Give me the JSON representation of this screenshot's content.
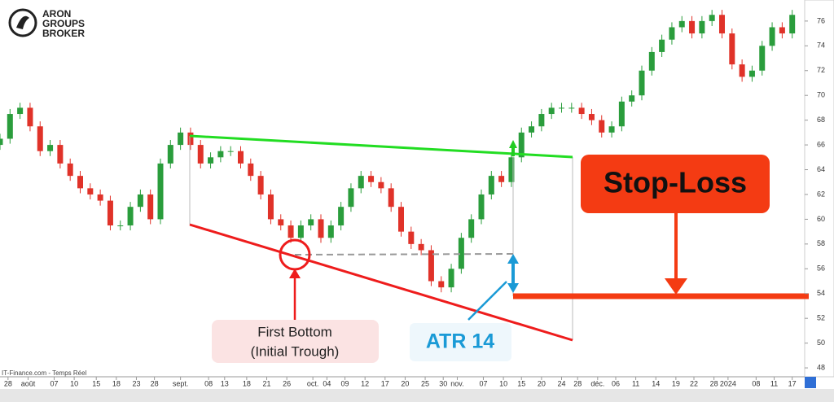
{
  "chart_data": {
    "type": "candlestick",
    "xlim": [
      0,
      200
    ],
    "ylim": [
      47.15,
      77.7
    ],
    "yticks": [
      48,
      50,
      52,
      54,
      56,
      58,
      60,
      62,
      64,
      66,
      68,
      70,
      72,
      74,
      76
    ],
    "xticks": [
      {
        "value": 2,
        "label": "28"
      },
      {
        "value": 7,
        "label": "août"
      },
      {
        "value": 13.5,
        "label": "07"
      },
      {
        "value": 18.5,
        "label": "10"
      },
      {
        "value": 24,
        "label": "15"
      },
      {
        "value": 29,
        "label": "18"
      },
      {
        "value": 34,
        "label": "23"
      },
      {
        "value": 38.5,
        "label": "28"
      },
      {
        "value": 45,
        "label": "sept."
      },
      {
        "value": 52,
        "label": "08"
      },
      {
        "value": 56,
        "label": "13"
      },
      {
        "value": 61.5,
        "label": "18"
      },
      {
        "value": 66.5,
        "label": "21"
      },
      {
        "value": 71.5,
        "label": "26"
      },
      {
        "value": 78,
        "label": "oct."
      },
      {
        "value": 81.5,
        "label": "04"
      },
      {
        "value": 86,
        "label": "09"
      },
      {
        "value": 91,
        "label": "12"
      },
      {
        "value": 96,
        "label": "17"
      },
      {
        "value": 101,
        "label": "20"
      },
      {
        "value": 106,
        "label": "25"
      },
      {
        "value": 110.5,
        "label": "30"
      },
      {
        "value": 114,
        "label": "nov."
      },
      {
        "value": 120.5,
        "label": "07"
      },
      {
        "value": 125.5,
        "label": "10"
      },
      {
        "value": 130,
        "label": "15"
      },
      {
        "value": 135,
        "label": "20"
      },
      {
        "value": 140,
        "label": "24"
      },
      {
        "value": 144,
        "label": "28"
      },
      {
        "value": 149,
        "label": "déc."
      },
      {
        "value": 153.5,
        "label": "06"
      },
      {
        "value": 158.5,
        "label": "11"
      },
      {
        "value": 163.5,
        "label": "14"
      },
      {
        "value": 168.5,
        "label": "19"
      },
      {
        "value": 173,
        "label": "22"
      },
      {
        "value": 178,
        "label": "28"
      },
      {
        "value": 181.5,
        "label": "2024"
      },
      {
        "value": 188.5,
        "label": "08"
      },
      {
        "value": 193,
        "label": "11"
      },
      {
        "value": 197.5,
        "label": "17"
      }
    ],
    "x": [
      0,
      2.5,
      5,
      7.5,
      10,
      12.5,
      15,
      17.5,
      20,
      22.5,
      25,
      27.5,
      30,
      32.5,
      35,
      37.5,
      40,
      42.5,
      45,
      47.5,
      50,
      52.5,
      55,
      57.5,
      60,
      62.5,
      65,
      67.5,
      70,
      72.5,
      75,
      77.5,
      80,
      82.5,
      85,
      87.5,
      90,
      92.5,
      95,
      97.5,
      100,
      102.5,
      105,
      107.5,
      110,
      112.5,
      115,
      117.5,
      120,
      122.5,
      125,
      127.5,
      130,
      132.5,
      135,
      137.5,
      140,
      142.5,
      145,
      147.5,
      150,
      152.5,
      155,
      157.5,
      160,
      162.5,
      165,
      167.5,
      170,
      172.5,
      175,
      177.5,
      180,
      182.5,
      185,
      187.5,
      190,
      192.5,
      195,
      197.5
    ],
    "open": [
      66,
      66.5,
      68.5,
      69,
      67.5,
      65.5,
      66,
      64.5,
      63.5,
      62.5,
      62,
      61.5,
      59.5,
      59.5,
      61,
      62,
      60,
      64.5,
      66,
      67,
      66,
      64.5,
      65,
      65.5,
      65.5,
      64.5,
      63.5,
      62,
      60,
      59.5,
      58.5,
      59.5,
      60,
      58.5,
      59.5,
      61,
      62.5,
      63.5,
      63,
      62.5,
      61,
      59,
      58,
      57.5,
      55,
      54.5,
      56,
      58.5,
      60,
      62,
      63.5,
      63,
      65,
      67,
      67.5,
      68.5,
      69,
      69,
      69,
      68.5,
      68,
      67,
      67.5,
      69.5,
      70,
      72,
      73.5,
      74.5,
      75.5,
      76,
      75,
      76,
      76.5,
      75,
      72.5,
      71.5,
      72,
      74,
      75.5,
      75
    ],
    "high": [
      66.9,
      68.9,
      69.4,
      69.4,
      67.9,
      66.4,
      66.4,
      64.9,
      63.9,
      62.9,
      62.4,
      61.9,
      59.9,
      61.4,
      62.4,
      62.4,
      64.9,
      66.4,
      67.4,
      67.4,
      66.4,
      65.4,
      65.9,
      65.9,
      65.9,
      64.9,
      63.9,
      62.4,
      60.4,
      59.9,
      59.9,
      60.4,
      60.4,
      59.9,
      61.4,
      62.9,
      63.9,
      63.9,
      63.4,
      62.9,
      61.4,
      59.4,
      58.4,
      57.9,
      55.4,
      56.4,
      58.9,
      60.4,
      62.4,
      63.9,
      63.9,
      65.4,
      67.4,
      67.9,
      68.9,
      69.4,
      69.4,
      69.4,
      69.4,
      68.9,
      68.4,
      67.9,
      69.9,
      70.4,
      72.4,
      73.9,
      74.9,
      75.9,
      76.4,
      76.4,
      76.4,
      76.9,
      76.9,
      75.4,
      72.9,
      72.4,
      74.4,
      75.9,
      75.9,
      76.9
    ],
    "low": [
      65.6,
      66.1,
      68.1,
      67.1,
      65.1,
      65.1,
      64.1,
      63.1,
      62.1,
      61.6,
      61.1,
      59.1,
      59.1,
      59.1,
      60.6,
      59.6,
      59.6,
      64.1,
      65.6,
      65.6,
      64.1,
      64.1,
      64.6,
      65.1,
      64.1,
      63.1,
      61.6,
      59.6,
      59.1,
      58.1,
      58.1,
      59.1,
      58.1,
      58.1,
      59.1,
      60.6,
      62.1,
      62.6,
      62.1,
      60.6,
      58.6,
      57.6,
      57.1,
      54.6,
      54.1,
      54.1,
      55.6,
      58.1,
      59.6,
      61.6,
      62.6,
      62.6,
      64.6,
      66.6,
      67.1,
      68.1,
      68.6,
      68.6,
      68.1,
      67.6,
      66.6,
      66.6,
      67.1,
      69.1,
      69.6,
      71.6,
      73.1,
      74.1,
      75.1,
      74.6,
      74.6,
      75.6,
      74.6,
      72.1,
      71.1,
      71.1,
      71.6,
      73.6,
      74.6,
      74.6
    ],
    "close": [
      66.5,
      68.5,
      69,
      67.5,
      65.5,
      66,
      64.5,
      63.5,
      62.5,
      62,
      61.5,
      59.5,
      59.5,
      61,
      62,
      60,
      64.5,
      66,
      67,
      66,
      64.5,
      65,
      65.5,
      65.5,
      64.5,
      63.5,
      62,
      60,
      59.5,
      58.5,
      59.5,
      60,
      58.5,
      59.5,
      61,
      62.5,
      63.5,
      63,
      62.5,
      61,
      59,
      58,
      57.5,
      55,
      54.5,
      56,
      58.5,
      60,
      62,
      63.5,
      63,
      65,
      67,
      67.5,
      68.5,
      69,
      69,
      69,
      68.5,
      68,
      67,
      67.5,
      69.5,
      70,
      72,
      73.5,
      74.5,
      75.5,
      76,
      75,
      76,
      76.5,
      75,
      72.5,
      71.5,
      72,
      74,
      75.5,
      75,
      76.5
    ],
    "up_color": "#2a9d3c",
    "down_color": "#e03229"
  },
  "logo": {
    "line1": "ARON",
    "line2": "GROUPS",
    "line3": "BROKER"
  },
  "source": "IT-Finance.com - Temps Réel",
  "annotations": {
    "stop_loss": "Stop-Loss",
    "first_bottom_line1": "First Bottom",
    "first_bottom_line2": "(Initial Trough)",
    "atr": "ATR 14"
  }
}
